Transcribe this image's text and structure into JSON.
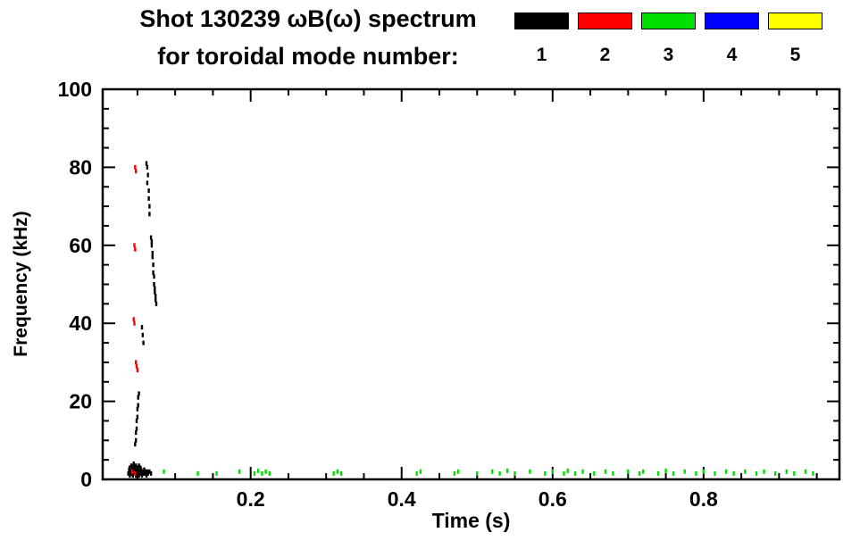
{
  "chart_data": {
    "type": "scatter",
    "title": "Shot 130239 ωB(ω) spectrum",
    "subtitle": "for toroidal mode number:",
    "xlabel": "Time (s)",
    "ylabel": "Frequency (kHz)",
    "xlim": [
      0.004,
      0.98
    ],
    "ylim": [
      0,
      100
    ],
    "x_ticks": [
      0.2,
      0.4,
      0.6,
      0.8
    ],
    "x_minor_step": 0.05,
    "y_ticks": [
      0,
      20,
      40,
      60,
      80,
      100
    ],
    "y_minor_step": 5,
    "grid": false,
    "legend_position": "top-right",
    "series": [
      {
        "name": "1",
        "color": "#000000",
        "points": [
          [
            0.062,
            81
          ],
          [
            0.063,
            80
          ],
          [
            0.064,
            78
          ],
          [
            0.063,
            76
          ],
          [
            0.065,
            74
          ],
          [
            0.065,
            72
          ],
          [
            0.066,
            70
          ],
          [
            0.066,
            68
          ],
          [
            0.068,
            62
          ],
          [
            0.069,
            61
          ],
          [
            0.069,
            60
          ],
          [
            0.07,
            58
          ],
          [
            0.07,
            57
          ],
          [
            0.071,
            55
          ],
          [
            0.071,
            53
          ],
          [
            0.072,
            52
          ],
          [
            0.072,
            50
          ],
          [
            0.073,
            49
          ],
          [
            0.073,
            48
          ],
          [
            0.074,
            47
          ],
          [
            0.074,
            46
          ],
          [
            0.075,
            45
          ],
          [
            0.056,
            39
          ],
          [
            0.057,
            37
          ],
          [
            0.058,
            35
          ],
          [
            0.047,
            9
          ],
          [
            0.048,
            10
          ],
          [
            0.048,
            12
          ],
          [
            0.049,
            13
          ],
          [
            0.049,
            15
          ],
          [
            0.05,
            16
          ],
          [
            0.05,
            18
          ],
          [
            0.051,
            19
          ],
          [
            0.051,
            21
          ],
          [
            0.052,
            22
          ],
          [
            0.038,
            1.5
          ],
          [
            0.039,
            2.5
          ],
          [
            0.04,
            1
          ],
          [
            0.04,
            3
          ],
          [
            0.041,
            2
          ],
          [
            0.042,
            1.5
          ],
          [
            0.042,
            3.5
          ],
          [
            0.043,
            2.5
          ],
          [
            0.044,
            1
          ],
          [
            0.044,
            3
          ],
          [
            0.045,
            2
          ],
          [
            0.045,
            4
          ],
          [
            0.046,
            1.5
          ],
          [
            0.046,
            3
          ],
          [
            0.047,
            2.5
          ],
          [
            0.048,
            1
          ],
          [
            0.048,
            3.5
          ],
          [
            0.049,
            2
          ],
          [
            0.05,
            1.5
          ],
          [
            0.05,
            3
          ],
          [
            0.051,
            2.5
          ],
          [
            0.052,
            1
          ],
          [
            0.052,
            3.5
          ],
          [
            0.053,
            2
          ],
          [
            0.054,
            1.5
          ],
          [
            0.054,
            3
          ],
          [
            0.055,
            2.5
          ],
          [
            0.056,
            1
          ],
          [
            0.057,
            2
          ],
          [
            0.058,
            1.5
          ],
          [
            0.059,
            2.5
          ],
          [
            0.06,
            1.5
          ],
          [
            0.061,
            2
          ],
          [
            0.062,
            1
          ],
          [
            0.063,
            2
          ],
          [
            0.064,
            1.5
          ],
          [
            0.066,
            2
          ],
          [
            0.068,
            1.5
          ]
        ]
      },
      {
        "name": "2",
        "color": "#ff0000",
        "points": [
          [
            0.047,
            80
          ],
          [
            0.048,
            79
          ],
          [
            0.046,
            60
          ],
          [
            0.047,
            59
          ],
          [
            0.045,
            41
          ],
          [
            0.046,
            40
          ],
          [
            0.048,
            30
          ],
          [
            0.049,
            29
          ],
          [
            0.05,
            28
          ],
          [
            0.043,
            2
          ],
          [
            0.047,
            1.5
          ]
        ]
      },
      {
        "name": "3",
        "color": "#00e000",
        "points": [
          [
            0.085,
            2
          ],
          [
            0.13,
            1.5
          ],
          [
            0.155,
            1.5
          ],
          [
            0.185,
            2
          ],
          [
            0.205,
            1.5
          ],
          [
            0.21,
            2.2
          ],
          [
            0.215,
            1.5
          ],
          [
            0.22,
            2
          ],
          [
            0.225,
            1.5
          ],
          [
            0.31,
            1.5
          ],
          [
            0.315,
            2
          ],
          [
            0.32,
            1.5
          ],
          [
            0.42,
            1.5
          ],
          [
            0.425,
            2
          ],
          [
            0.47,
            1.5
          ],
          [
            0.475,
            2
          ],
          [
            0.5,
            1.5
          ],
          [
            0.52,
            2
          ],
          [
            0.53,
            1.5
          ],
          [
            0.54,
            2.2
          ],
          [
            0.55,
            1.5
          ],
          [
            0.57,
            2
          ],
          [
            0.59,
            1.5
          ],
          [
            0.6,
            2
          ],
          [
            0.615,
            1.5
          ],
          [
            0.62,
            2.2
          ],
          [
            0.63,
            1.5
          ],
          [
            0.64,
            2
          ],
          [
            0.655,
            1.5
          ],
          [
            0.67,
            2
          ],
          [
            0.68,
            1.5
          ],
          [
            0.7,
            2
          ],
          [
            0.715,
            1.5
          ],
          [
            0.72,
            2
          ],
          [
            0.74,
            1.5
          ],
          [
            0.75,
            2.2
          ],
          [
            0.76,
            1.5
          ],
          [
            0.775,
            2
          ],
          [
            0.79,
            1.5
          ],
          [
            0.8,
            2
          ],
          [
            0.815,
            1.5
          ],
          [
            0.83,
            2
          ],
          [
            0.84,
            1.5
          ],
          [
            0.855,
            2
          ],
          [
            0.87,
            1.5
          ],
          [
            0.88,
            2
          ],
          [
            0.895,
            1.5
          ],
          [
            0.91,
            2
          ],
          [
            0.92,
            1.5
          ],
          [
            0.935,
            2
          ],
          [
            0.945,
            1.5
          ]
        ]
      },
      {
        "name": "4",
        "color": "#0000ff",
        "points": []
      },
      {
        "name": "5",
        "color": "#ffff00",
        "points": []
      }
    ]
  }
}
